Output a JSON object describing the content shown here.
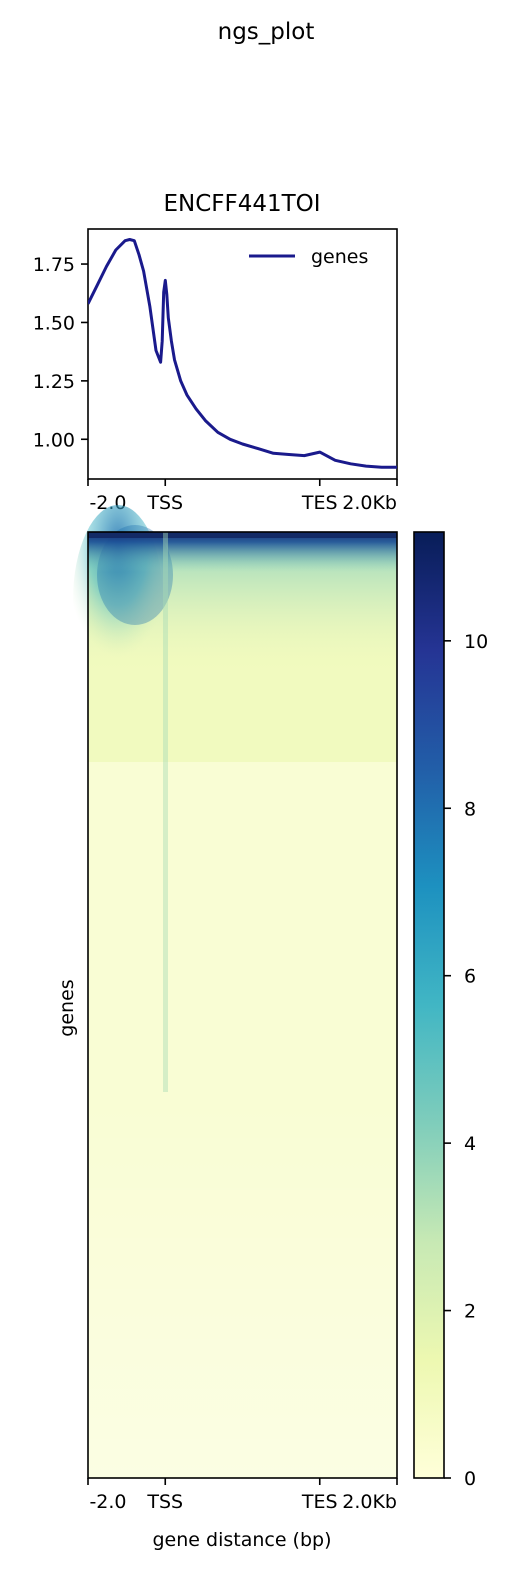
{
  "suptitle": "ngs_plot",
  "chart_data": [
    {
      "type": "line",
      "title": "ENCFF441TOI",
      "xlabel": "",
      "ylabel": "",
      "x_tick_labels": [
        "-2.0",
        "TSS",
        "TES",
        "2.0Kb"
      ],
      "y_ticks": [
        "1.75",
        "1.50",
        "1.25",
        "1.00"
      ],
      "y_tick_values": [
        1.75,
        1.5,
        1.25,
        1.0
      ],
      "xlim": [
        0,
        100
      ],
      "ylim": [
        0.83,
        1.9
      ],
      "legend": {
        "position": "top-right",
        "entries": [
          "genes"
        ]
      },
      "series": [
        {
          "name": "genes",
          "color": "#1a1a8c",
          "x": [
            0,
            3,
            6,
            9,
            12,
            13.5,
            15,
            16.5,
            18,
            20,
            22,
            23.5,
            24,
            24.5,
            25,
            25.5,
            26,
            27,
            28,
            30,
            32,
            35,
            38,
            42,
            46,
            50,
            55,
            60,
            65,
            70,
            75,
            80,
            85,
            90,
            95,
            100
          ],
          "y": [
            1.58,
            1.66,
            1.74,
            1.81,
            1.85,
            1.855,
            1.85,
            1.79,
            1.72,
            1.57,
            1.38,
            1.33,
            1.42,
            1.63,
            1.68,
            1.62,
            1.52,
            1.42,
            1.34,
            1.25,
            1.19,
            1.13,
            1.08,
            1.03,
            1.0,
            0.98,
            0.96,
            0.94,
            0.935,
            0.93,
            0.945,
            0.91,
            0.895,
            0.885,
            0.88,
            0.88
          ]
        }
      ]
    },
    {
      "type": "heatmap",
      "xlabel": "gene distance (bp)",
      "ylabel": "genes",
      "x_tick_labels": [
        "-2.0",
        "TSS",
        "TES",
        "2.0Kb"
      ],
      "colorbar": {
        "ticks": [
          "0",
          "2",
          "4",
          "6",
          "8",
          "10"
        ],
        "tick_values": [
          0,
          2,
          4,
          6,
          8,
          10
        ],
        "vmin": 0,
        "vmax": 11.3,
        "colormap": "YlGnBu",
        "stops": [
          "#ffffd9",
          "#edf8b1",
          "#c7e9b4",
          "#7fcdbb",
          "#41b6c4",
          "#1d91c0",
          "#225ea8",
          "#253494",
          "#081d58"
        ]
      }
    }
  ]
}
